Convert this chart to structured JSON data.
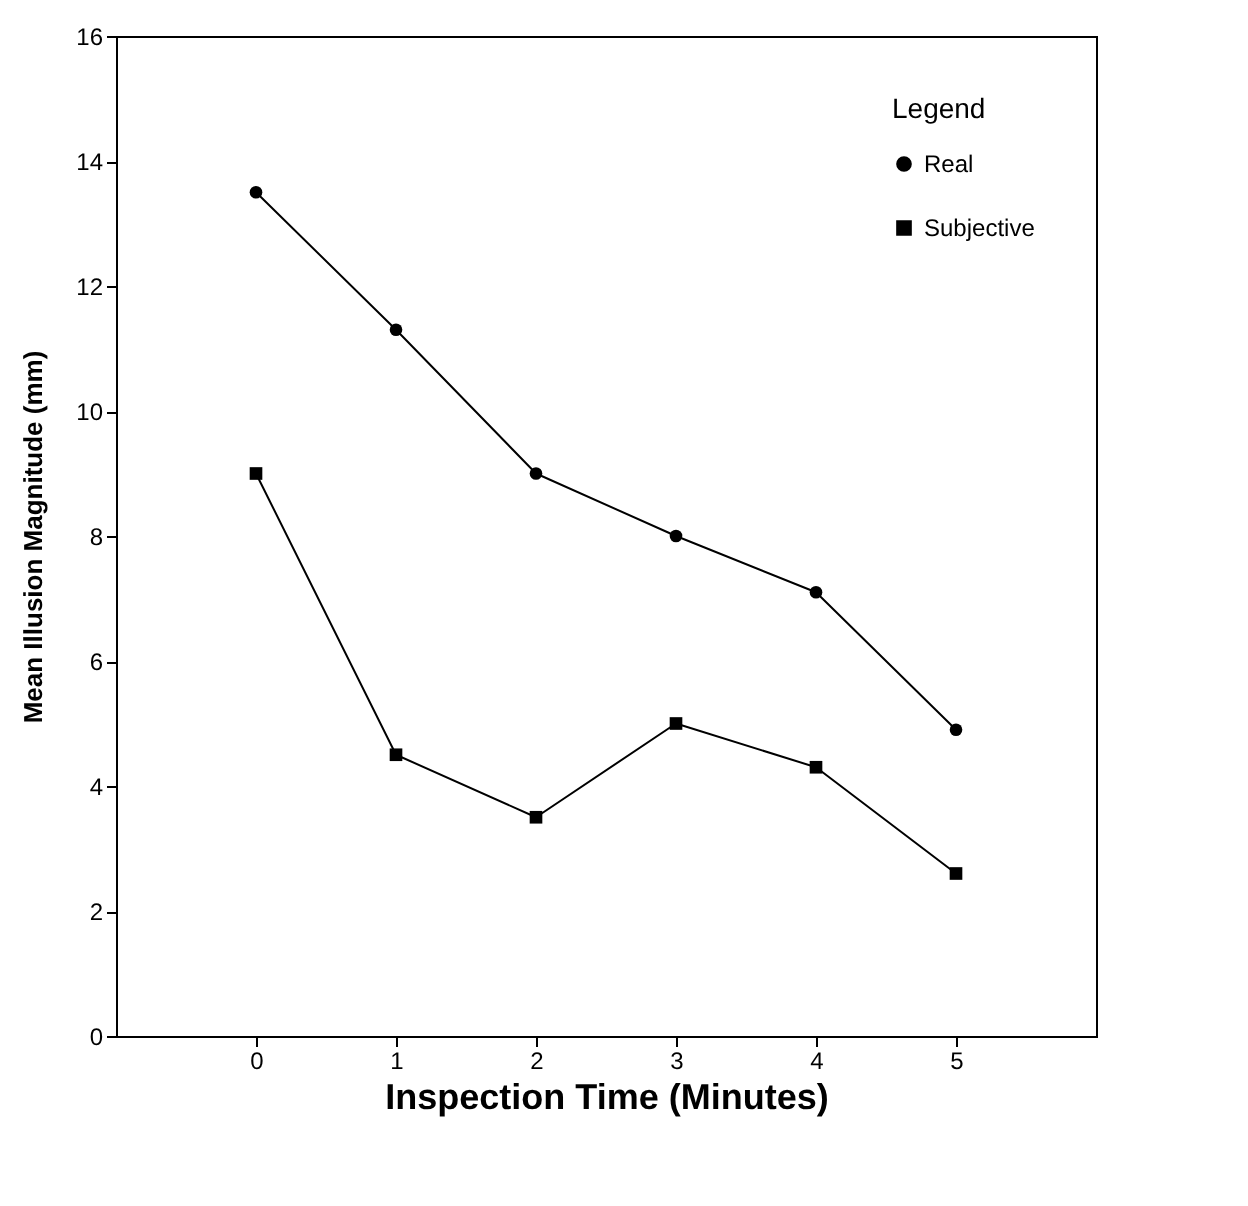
{
  "chart_data": {
    "type": "line",
    "xlabel": "Inspection Time (Minutes)",
    "ylabel": "Mean Illusion Magnitude (mm)",
    "legend_title": "Legend",
    "x": [
      0,
      1,
      2,
      3,
      4,
      5
    ],
    "series": [
      {
        "name": "Real",
        "color": "#000000",
        "marker": "circle",
        "values": [
          13.5,
          11.3,
          9.0,
          8.0,
          7.1,
          4.9
        ]
      },
      {
        "name": "Subjective",
        "color": "#000000",
        "marker": "square",
        "values": [
          9.0,
          4.5,
          3.5,
          5.0,
          4.3,
          2.6
        ]
      }
    ],
    "xlim": [
      -1,
      6
    ],
    "xticks": [
      0,
      1,
      2,
      3,
      4,
      5
    ],
    "ylim": [
      0,
      16
    ],
    "yticks": [
      0,
      2,
      4,
      6,
      8,
      10,
      12,
      14,
      16
    ],
    "grid": false,
    "legend": "top right",
    "line_style": "solid"
  }
}
